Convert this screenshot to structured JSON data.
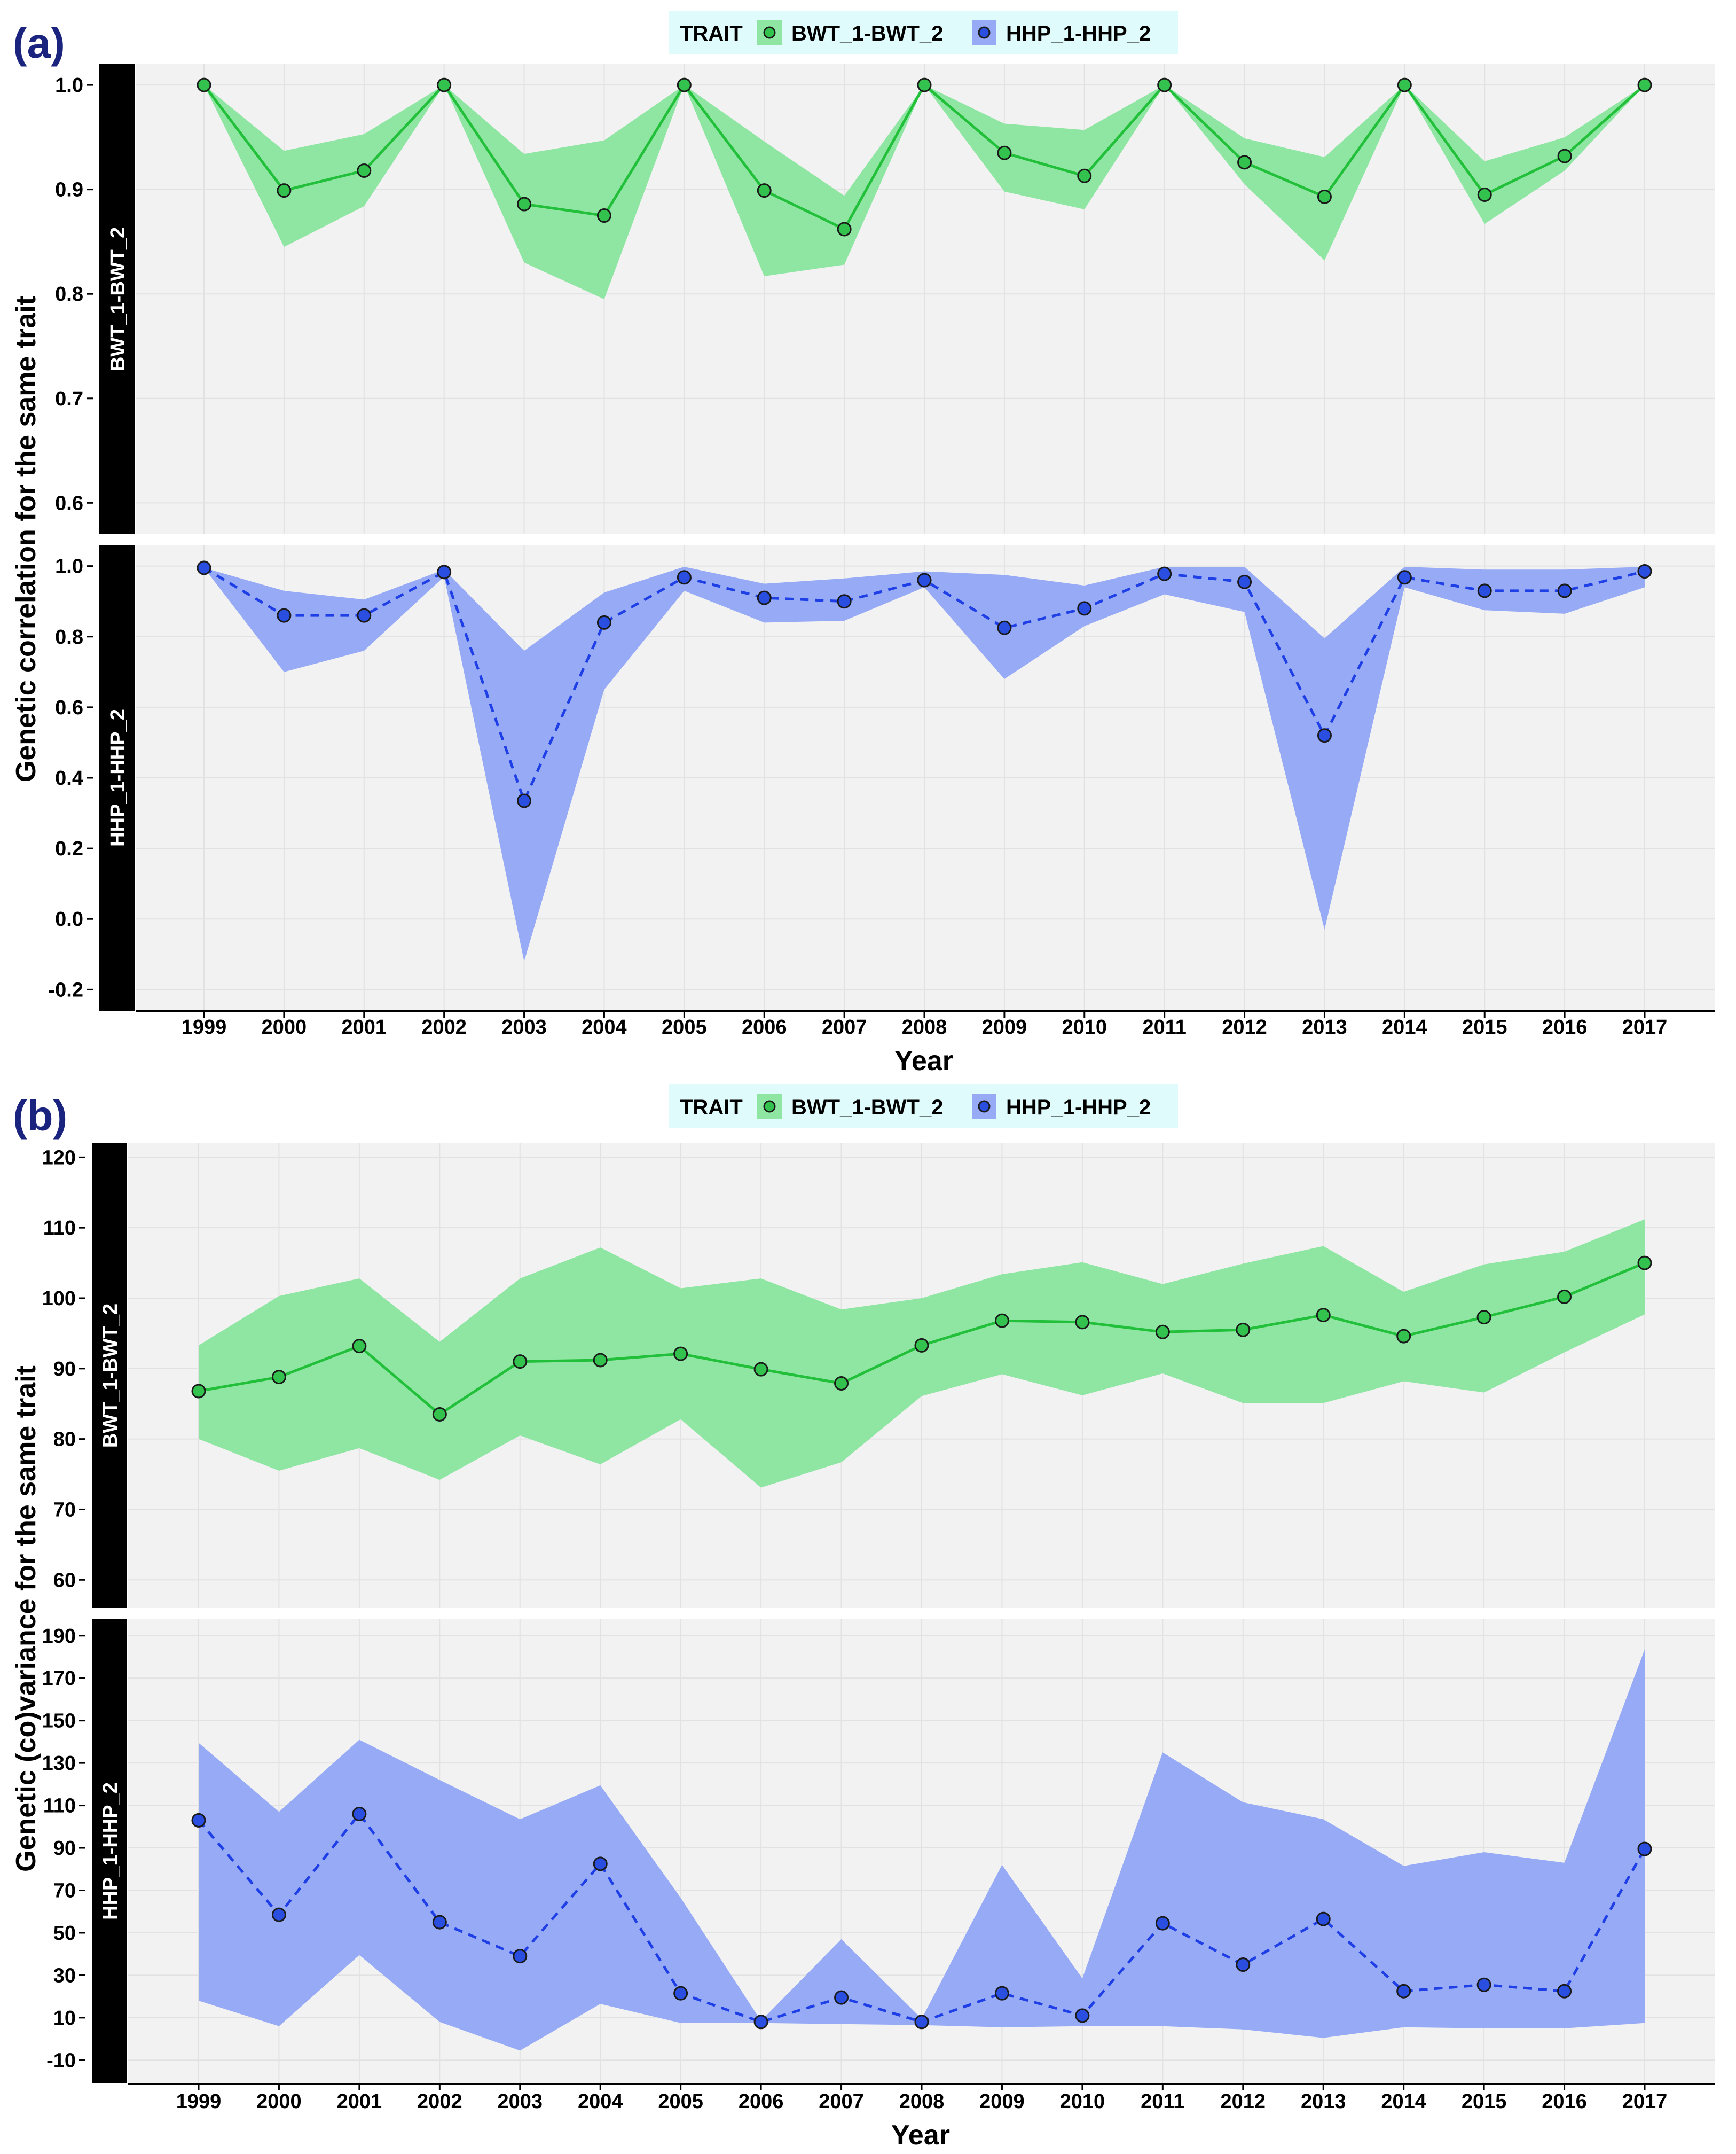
{
  "colors": {
    "green_line": "#22c03a",
    "green_fill": "#8fe6a3",
    "green_point": "#33c24d",
    "blue_line": "#1f3fe6",
    "blue_fill": "#97aaf6",
    "blue_point": "#2a4fe0",
    "panel_bg": "#f2f2f2",
    "grid": "#e2e2e2",
    "strip_bg": "#000000",
    "legend_bg": "#e0fbfb"
  },
  "chart_data": [
    {
      "type": "line",
      "panel": "(a)",
      "legend": {
        "title": "TRAIT",
        "entries": [
          "BWT_1-BWT_2",
          "HHP_1-HHP_2"
        ]
      },
      "ylabel": "Genetic correlation for the same trait",
      "xlabel": "Year",
      "x": [
        "1999",
        "2000",
        "2001",
        "2002",
        "2003",
        "2004",
        "2005",
        "2006",
        "2007",
        "2008",
        "2009",
        "2010",
        "2011",
        "2012",
        "2013",
        "2014",
        "2015",
        "2016",
        "2017"
      ],
      "facets": [
        {
          "strip": "BWT_1-BWT_2",
          "color": "green",
          "ylim": [
            0.57,
            1.02
          ],
          "yticks": [
            0.6,
            0.7,
            0.8,
            0.9,
            1.0
          ],
          "ytick_labels": [
            "0.6",
            "0.7",
            "0.8",
            "0.9",
            "1.0"
          ],
          "values": [
            1.0,
            0.899,
            0.918,
            1.0,
            0.886,
            0.875,
            1.0,
            0.899,
            0.862,
            1.0,
            0.935,
            0.913,
            1.0,
            0.926,
            0.893,
            1.0,
            0.895,
            0.932,
            1.0
          ],
          "lower": [
            1.0,
            0.845,
            0.884,
            1.0,
            0.83,
            0.795,
            1.0,
            0.817,
            0.828,
            1.0,
            0.898,
            0.881,
            1.0,
            0.905,
            0.832,
            1.0,
            0.867,
            0.918,
            1.0
          ],
          "upper": [
            1.0,
            0.937,
            0.953,
            1.0,
            0.934,
            0.947,
            1.0,
            0.946,
            0.894,
            1.0,
            0.963,
            0.957,
            1.0,
            0.949,
            0.931,
            1.0,
            0.927,
            0.95,
            1.0
          ]
        },
        {
          "strip": "HHP_1-HHP_2",
          "color": "blue",
          "ylim": [
            -0.26,
            1.06
          ],
          "yticks": [
            -0.2,
            0.0,
            0.2,
            0.4,
            0.6,
            0.8,
            1.0
          ],
          "ytick_labels": [
            "-0.2",
            "0.0",
            "0.2",
            "0.4",
            "0.6",
            "0.8",
            "1.0"
          ],
          "values": [
            0.995,
            0.86,
            0.86,
            0.983,
            0.335,
            0.84,
            0.968,
            0.91,
            0.9,
            0.96,
            0.825,
            0.88,
            0.978,
            0.955,
            0.52,
            0.968,
            0.93,
            0.93,
            0.985
          ],
          "lower": [
            0.995,
            0.7,
            0.76,
            0.97,
            -0.12,
            0.65,
            0.93,
            0.84,
            0.845,
            0.94,
            0.68,
            0.83,
            0.92,
            0.87,
            -0.03,
            0.94,
            0.875,
            0.865,
            0.94
          ],
          "upper": [
            0.995,
            0.93,
            0.905,
            0.99,
            0.76,
            0.925,
            0.998,
            0.95,
            0.965,
            0.985,
            0.975,
            0.945,
            0.998,
            0.998,
            0.795,
            0.998,
            0.99,
            0.99,
            0.998
          ]
        }
      ]
    },
    {
      "type": "line",
      "panel": "(b)",
      "legend": {
        "title": "TRAIT",
        "entries": [
          "BWT_1-BWT_2",
          "HHP_1-HHP_2"
        ]
      },
      "ylabel": "Genetic (co)variance for the same trait",
      "xlabel": "Year",
      "x": [
        "1999",
        "2000",
        "2001",
        "2002",
        "2003",
        "2004",
        "2005",
        "2006",
        "2007",
        "2008",
        "2009",
        "2010",
        "2011",
        "2012",
        "2013",
        "2014",
        "2015",
        "2016",
        "2017"
      ],
      "facets": [
        {
          "strip": "BWT_1-BWT_2",
          "color": "green",
          "ylim": [
            56,
            122
          ],
          "yticks": [
            60,
            70,
            80,
            90,
            100,
            110,
            120
          ],
          "ytick_labels": [
            "60",
            "70",
            "80",
            "90",
            "100",
            "110",
            "120"
          ],
          "values": [
            86.8,
            88.8,
            93.2,
            83.5,
            91.0,
            91.2,
            92.1,
            89.9,
            87.9,
            93.3,
            96.8,
            96.6,
            95.2,
            95.5,
            97.6,
            94.6,
            97.3,
            100.2,
            105.0
          ],
          "lower": [
            80.0,
            75.5,
            78.7,
            74.2,
            80.5,
            76.4,
            82.8,
            73.1,
            76.7,
            86.1,
            89.2,
            86.2,
            89.3,
            85.1,
            85.1,
            88.2,
            86.6,
            92.3,
            97.7
          ],
          "upper": [
            93.3,
            100.3,
            102.8,
            93.8,
            102.8,
            107.2,
            101.4,
            102.8,
            98.4,
            100.0,
            103.4,
            105.1,
            102.0,
            104.9,
            107.4,
            100.9,
            104.8,
            106.6,
            111.2
          ]
        },
        {
          "strip": "HHP_1-HHP_2",
          "color": "blue",
          "ylim": [
            -21,
            198
          ],
          "yticks": [
            -10,
            10,
            30,
            50,
            70,
            90,
            110,
            130,
            150,
            170,
            190
          ],
          "ytick_labels": [
            "-10",
            "10",
            "30",
            "50",
            "70",
            "90",
            "110",
            "130",
            "150",
            "170",
            "190"
          ],
          "values": [
            103,
            58.5,
            106,
            55,
            39,
            82.5,
            21.5,
            8,
            19.5,
            8,
            21.5,
            11,
            54.5,
            35,
            56.5,
            22.5,
            25.5,
            22.5,
            89.5
          ],
          "lower": [
            18,
            6,
            39.5,
            8,
            -5.5,
            16.5,
            7.5,
            7.5,
            7,
            6.5,
            5.5,
            6,
            6,
            4.5,
            0.5,
            5.5,
            5,
            5,
            7.5
          ],
          "upper": [
            139.5,
            107,
            141,
            122,
            103.5,
            119.5,
            66.5,
            8.5,
            47,
            9.5,
            82,
            28.5,
            135,
            111.5,
            103.5,
            81.5,
            88,
            83,
            183.5
          ]
        }
      ]
    }
  ]
}
